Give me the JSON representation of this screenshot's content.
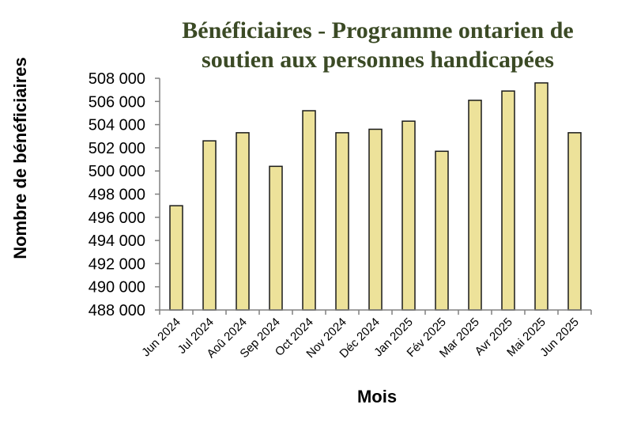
{
  "chart_data": {
    "type": "bar",
    "title_lines": [
      "Bénéficiaires - Programme ontarien de",
      "soutien aux personnes handicapées"
    ],
    "xlabel": "Mois",
    "ylabel": "Nombre de bénéficiaires",
    "categories": [
      "Jun 2024",
      "Jul 2024",
      "Aoû 2024",
      "Sep 2024",
      "Oct 2024",
      "Nov 2024",
      "Déc 2024",
      "Jan 2025",
      "Fév 2025",
      "Mar 2025",
      "Avr 2025",
      "Mai 2025",
      "Jun 2025"
    ],
    "values": [
      497000,
      502600,
      503300,
      500400,
      505200,
      503300,
      503600,
      504300,
      501700,
      506100,
      506900,
      507600,
      503300
    ],
    "ylim": [
      488000,
      508000
    ],
    "yticks": [
      488000,
      490000,
      492000,
      494000,
      496000,
      498000,
      500000,
      502000,
      504000,
      506000,
      508000
    ],
    "ytick_labels": [
      "488 000",
      "490 000",
      "492 000",
      "494 000",
      "496 000",
      "498 000",
      "500 000",
      "502 000",
      "504 000",
      "506 000",
      "508 000"
    ],
    "grid": false,
    "legend": "none",
    "colors": {
      "bar_fill": "#ede29a",
      "bar_stroke": "#1a1a1a",
      "title": "#3b4a25",
      "axis": "#808080"
    }
  }
}
